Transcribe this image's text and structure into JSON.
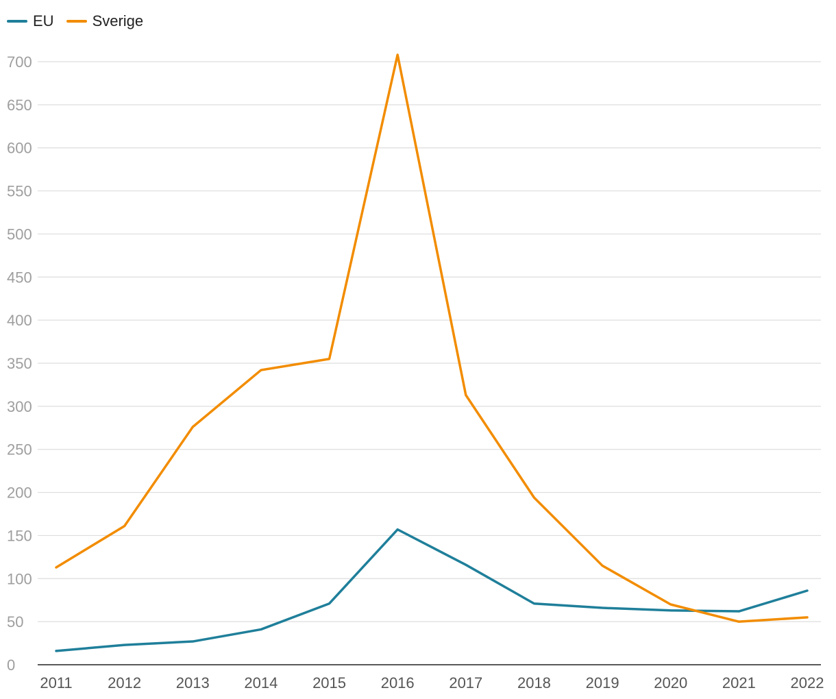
{
  "chart_data": {
    "type": "line",
    "title": "",
    "xlabel": "",
    "ylabel": "",
    "categories": [
      "2011",
      "2012",
      "2013",
      "2014",
      "2015",
      "2016",
      "2017",
      "2018",
      "2019",
      "2020",
      "2021",
      "2022"
    ],
    "ylim": [
      0,
      700
    ],
    "yticks": [
      0,
      50,
      100,
      150,
      200,
      250,
      300,
      350,
      400,
      450,
      500,
      550,
      600,
      650,
      700
    ],
    "grid": true,
    "legend_position": "top-left",
    "series": [
      {
        "name": "EU",
        "color": "#1f7f9a",
        "values": [
          16,
          23,
          27,
          41,
          71,
          157,
          116,
          71,
          66,
          63,
          62,
          86
        ]
      },
      {
        "name": "Sverige",
        "color": "#f28c00",
        "values": [
          113,
          161,
          276,
          342,
          355,
          708,
          313,
          194,
          115,
          70,
          50,
          55
        ]
      }
    ]
  }
}
